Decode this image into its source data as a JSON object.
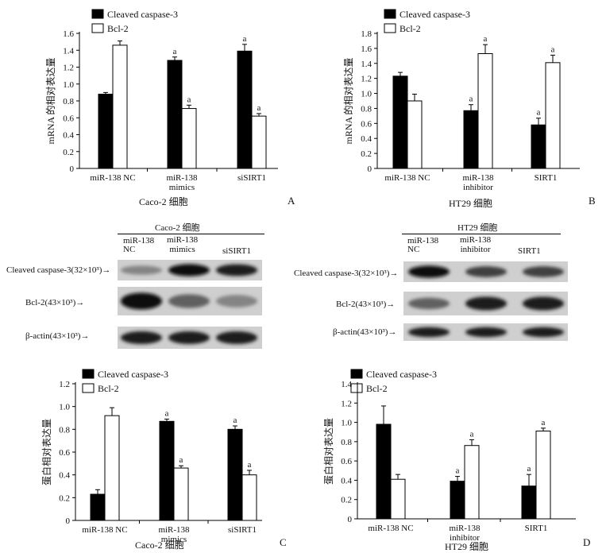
{
  "panels": {
    "A": {
      "letter": "A",
      "cell_line": "Caco-2 细胞"
    },
    "B": {
      "letter": "B",
      "cell_line": "HT29 细胞"
    },
    "C": {
      "letter": "C",
      "cell_line": "Caco-2 细胞"
    },
    "D": {
      "letter": "D",
      "cell_line": "HT29 细胞"
    }
  },
  "blots": [
    {
      "title": "Caco-2 细胞",
      "lanes": [
        [
          "miR-138",
          "NC"
        ],
        [
          "miR-138",
          "mimics"
        ],
        [
          "siSIRT1"
        ]
      ],
      "rows": [
        "Cleaved caspase-3(32×10³)→",
        "Bcl-2(43×10³)→",
        "β-actin(43×10³)→"
      ],
      "band_intensity": [
        [
          0.45,
          0.95,
          0.9
        ],
        [
          0.95,
          0.6,
          0.45
        ],
        [
          0.9,
          0.9,
          0.9
        ]
      ]
    },
    {
      "title": "HT29 细胞",
      "lanes": [
        [
          "miR-138",
          "NC"
        ],
        [
          "miR-138",
          "inhibitor"
        ],
        [
          "SIRT1"
        ]
      ],
      "rows": [
        "Cleaved caspase-3(32×10³)→",
        "Bcl-2(43×10³)→",
        "β-actin(43×10³)→"
      ],
      "band_intensity": [
        [
          0.95,
          0.75,
          0.75
        ],
        [
          0.6,
          0.9,
          0.9
        ],
        [
          0.9,
          0.9,
          0.9
        ]
      ]
    }
  ],
  "colors": {
    "bar_dark": "#000000",
    "bar_light": "#ffffff",
    "stroke": "#000000",
    "blot_bg": "#cfcfcf"
  },
  "chart_data": [
    {
      "type": "bar",
      "ylabel": "mRNA 的相对表达量",
      "xlabel": "Caco-2 细胞",
      "ylim": [
        0,
        1.6
      ],
      "ticks": [
        "0",
        "0.2",
        "0.4",
        "0.6",
        "0.8",
        "1.0",
        "1.2",
        "1.4",
        "1.6"
      ],
      "categories": [
        [
          "miR-138 NC"
        ],
        [
          "miR-138",
          "mimics"
        ],
        [
          "siSIRT1"
        ]
      ],
      "series": [
        {
          "name": "Cleaved caspase-3",
          "values": [
            0.88,
            1.28,
            1.39
          ],
          "errors": [
            0.02,
            0.04,
            0.08
          ],
          "sig": [
            "",
            "a",
            "a"
          ]
        },
        {
          "name": "Bcl-2",
          "values": [
            1.46,
            0.71,
            0.62
          ],
          "errors": [
            0.05,
            0.04,
            0.03
          ],
          "sig": [
            "",
            "a",
            "a"
          ]
        }
      ]
    },
    {
      "type": "bar",
      "ylabel": "mRNA 的相对表达量",
      "xlabel": "HT29 细胞",
      "ylim": [
        0,
        1.8
      ],
      "ticks": [
        "0",
        "0.2",
        "0.4",
        "0.6",
        "0.8",
        "1.0",
        "1.2",
        "1.4",
        "1.6",
        "1.8"
      ],
      "categories": [
        [
          "miR-138 NC"
        ],
        [
          "miR-138",
          "inhibitor"
        ],
        [
          "SIRT1"
        ]
      ],
      "series": [
        {
          "name": "Cleaved caspase-3",
          "values": [
            1.23,
            0.77,
            0.58
          ],
          "errors": [
            0.05,
            0.08,
            0.09
          ],
          "sig": [
            "",
            "a",
            "a"
          ]
        },
        {
          "name": "Bcl-2",
          "values": [
            0.9,
            1.53,
            1.41
          ],
          "errors": [
            0.09,
            0.12,
            0.1
          ],
          "sig": [
            "",
            "a",
            "a"
          ]
        }
      ]
    },
    {
      "type": "bar",
      "ylabel": "蛋白相对表达量",
      "xlabel": "Caco-2 细胞",
      "ylim": [
        0,
        1.2
      ],
      "ticks": [
        "0",
        "0.2",
        "0.4",
        "0.6",
        "0.8",
        "1.0",
        "1.2"
      ],
      "categories": [
        [
          "miR-138 NC"
        ],
        [
          "miR-138",
          "mimics"
        ],
        [
          "siSIRT1"
        ]
      ],
      "series": [
        {
          "name": "Cleaved caspase-3",
          "values": [
            0.23,
            0.87,
            0.8
          ],
          "errors": [
            0.04,
            0.02,
            0.03
          ],
          "sig": [
            "",
            "a",
            "a"
          ]
        },
        {
          "name": "Bcl-2",
          "values": [
            0.92,
            0.46,
            0.4
          ],
          "errors": [
            0.07,
            0.02,
            0.04
          ],
          "sig": [
            "",
            "a",
            "a"
          ]
        }
      ]
    },
    {
      "type": "bar",
      "ylabel": "蛋白相对表达量",
      "xlabel": "HT29 细胞",
      "ylim": [
        0,
        1.4
      ],
      "ticks": [
        "0",
        "0.2",
        "0.4",
        "0.6",
        "0.8",
        "1.0",
        "1.2",
        "1.4"
      ],
      "categories": [
        [
          "miR-138 NC"
        ],
        [
          "miR-138",
          "inhibitor"
        ],
        [
          "SIRT1"
        ]
      ],
      "series": [
        {
          "name": "Cleaved caspase-3",
          "values": [
            0.98,
            0.39,
            0.34
          ],
          "errors": [
            0.19,
            0.05,
            0.12
          ],
          "sig": [
            "",
            "a",
            "a"
          ]
        },
        {
          "name": "Bcl-2",
          "values": [
            0.41,
            0.76,
            0.91
          ],
          "errors": [
            0.05,
            0.06,
            0.03
          ],
          "sig": [
            "",
            "a",
            "a"
          ]
        }
      ]
    }
  ]
}
